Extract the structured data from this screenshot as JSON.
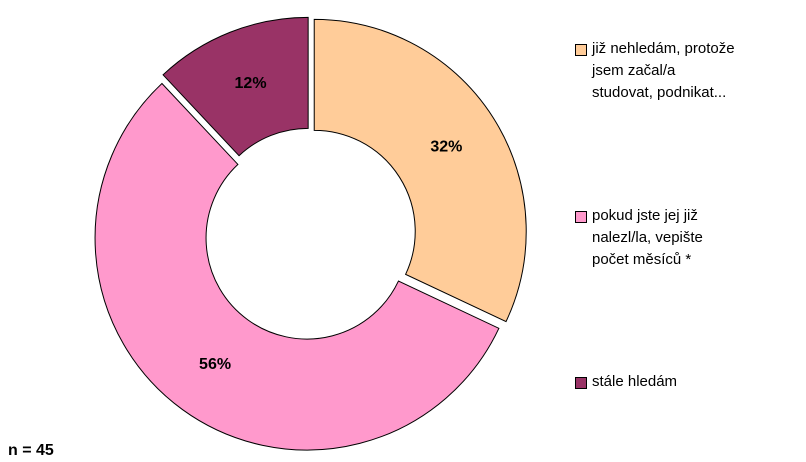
{
  "chart_data": {
    "type": "donut",
    "categories": [
      "již nehledám, protože\njsem začal/a\nstudovat, podnikat...",
      "pokud jste jej již\nnalezl/la, vepište\npočet měsíců *",
      "stále hledám"
    ],
    "values": [
      32,
      56,
      12
    ],
    "value_labels": [
      "32%",
      "56%",
      "12%"
    ],
    "colors": [
      "#FFCC99",
      "#FF99CC",
      "#993366"
    ],
    "annotation": "n = 45"
  }
}
